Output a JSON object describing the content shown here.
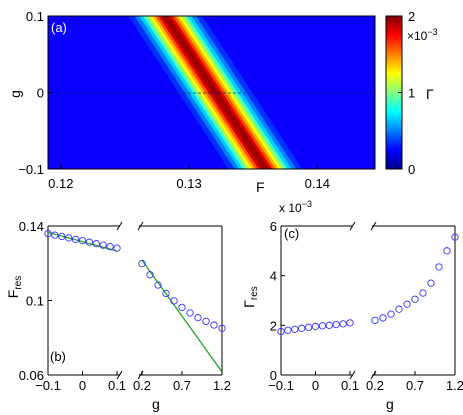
{
  "chart_data": [
    {
      "panel_label": "(a)",
      "type": "heatmap",
      "title": "",
      "xlabel": "F",
      "ylabel": "g",
      "xlim": [
        0.119,
        0.1445
      ],
      "ylim": [
        -0.1,
        0.1
      ],
      "x_ticks": [
        "0.12",
        "0.13",
        "0.14"
      ],
      "x_tick_values": [
        0.12,
        0.13,
        0.14
      ],
      "y_ticks": [
        "0.1",
        "0",
        "−0.1"
      ],
      "y_tick_values": [
        0.1,
        0,
        -0.1
      ],
      "colorbar": {
        "label": "Γ",
        "ticks": [
          "2",
          "1",
          "0"
        ],
        "tick_values": [
          2,
          1,
          0
        ],
        "range": [
          0,
          2
        ],
        "exponent_label": "×10",
        "exponent_power": "−3",
        "colormap": "jet"
      },
      "ridge": {
        "description_points": [
          {
            "g": 0.1,
            "F": 0.12815
          },
          {
            "g": 0.0,
            "F": 0.13205
          },
          {
            "g": -0.1,
            "F": 0.13595
          }
        ],
        "peak_value": 2.0
      },
      "reference_line": {
        "g": 0,
        "style": "dashed"
      },
      "grid": false
    },
    {
      "panel_label": "(b)",
      "type": "scatter",
      "xlabel": "g",
      "ylabel": "F",
      "ylabel_sub": "res",
      "ylim": [
        0.06,
        0.14
      ],
      "y_ticks": [
        "0.14",
        "0.1",
        "0.06"
      ],
      "y_tick_values": [
        0.14,
        0.1,
        0.06
      ],
      "x_ticks": [
        "−0.1",
        "0",
        "0.1",
        "0.2",
        "0.7",
        "1.2"
      ],
      "x_tick_values": [
        -0.1,
        0,
        0.1,
        0.2,
        0.7,
        1.2
      ],
      "broken_axis": {
        "left_range": [
          -0.1,
          0.1
        ],
        "right_range": [
          0.2,
          1.2
        ]
      },
      "series": [
        {
          "marker": "circle",
          "color": "#3333ff",
          "x": [
            -0.1,
            -0.08,
            -0.06,
            -0.04,
            -0.02,
            0.0,
            0.02,
            0.04,
            0.06,
            0.08,
            0.1,
            0.2,
            0.3,
            0.4,
            0.5,
            0.6,
            0.7,
            0.8,
            0.9,
            1.0,
            1.1,
            1.2
          ],
          "y": [
            0.1359,
            0.1351,
            0.1344,
            0.1336,
            0.1328,
            0.1321,
            0.1313,
            0.1305,
            0.1297,
            0.1289,
            0.1281,
            0.1198,
            0.1138,
            0.1083,
            0.1038,
            0.0998,
            0.0963,
            0.0933,
            0.0908,
            0.0888,
            0.0868,
            0.0851
          ]
        }
      ],
      "lines": [
        {
          "color": "#22aa22",
          "x": [
            -0.1,
            0.1
          ],
          "y": [
            0.1366,
            0.1266
          ]
        },
        {
          "color": "#22aa22",
          "x": [
            0.2,
            1.2
          ],
          "y": [
            0.1216,
            0.0617
          ]
        }
      ]
    },
    {
      "panel_label": "(c)",
      "type": "scatter",
      "xlabel": "g",
      "ylabel": "Γ",
      "ylabel_sub": "res",
      "ylim": [
        0,
        6
      ],
      "y_ticks": [
        "6",
        "4",
        "2",
        "0"
      ],
      "y_tick_values": [
        6,
        4,
        2,
        0
      ],
      "exponent_label": "x 10",
      "exponent_power": "−3",
      "x_ticks": [
        "−0.1",
        "0",
        "0.1",
        "0.2",
        "0.7",
        "1.2"
      ],
      "x_tick_values": [
        -0.1,
        0,
        0.1,
        0.2,
        0.7,
        1.2
      ],
      "broken_axis": {
        "left_range": [
          -0.1,
          0.1
        ],
        "right_range": [
          0.2,
          1.2
        ]
      },
      "series": [
        {
          "marker": "circle",
          "color": "#3333ff",
          "x": [
            -0.1,
            -0.08,
            -0.06,
            -0.04,
            -0.02,
            0.0,
            0.02,
            0.04,
            0.06,
            0.08,
            0.1,
            0.2,
            0.3,
            0.4,
            0.5,
            0.6,
            0.7,
            0.8,
            0.9,
            1.0,
            1.1,
            1.2
          ],
          "y": [
            1.75,
            1.8,
            1.84,
            1.88,
            1.92,
            1.95,
            1.98,
            2.0,
            2.03,
            2.06,
            2.1,
            2.2,
            2.3,
            2.45,
            2.65,
            2.85,
            3.05,
            3.3,
            3.7,
            4.35,
            5.0,
            5.55
          ]
        }
      ]
    }
  ]
}
